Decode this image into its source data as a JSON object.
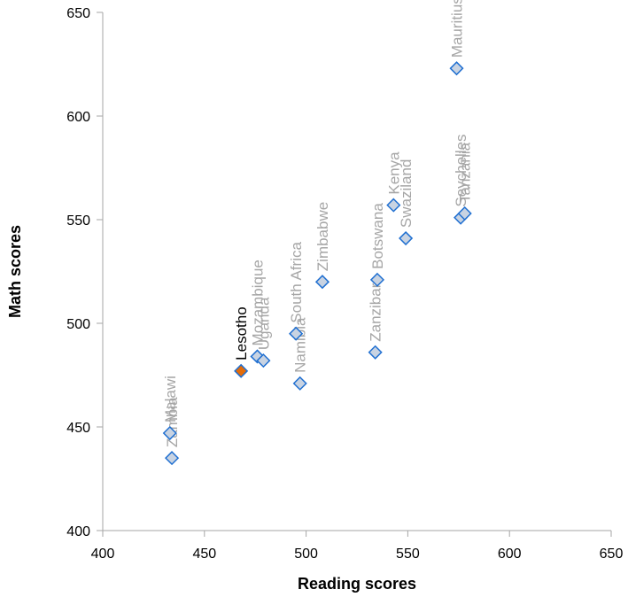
{
  "chart_data": {
    "type": "scatter",
    "title": "",
    "xlabel": "Reading scores",
    "ylabel": "Math  scores",
    "xlim": [
      400,
      650
    ],
    "ylim": [
      400,
      650
    ],
    "xticks": [
      "400",
      "450",
      "500",
      "550",
      "600",
      "650"
    ],
    "yticks": [
      "400",
      "450",
      "500",
      "550",
      "600",
      "650"
    ],
    "grid": false,
    "colors": {
      "marker_fill": "#c8d3e2",
      "marker_stroke": "#1f6fd1",
      "highlight_fill": "#e36c0a",
      "label_text": "#a6a6a6",
      "highlight_label_text": "#000000",
      "axis_line": "#a6a6a6"
    },
    "points": [
      {
        "label": "Mauritius",
        "x": 574,
        "y": 623,
        "highlight": false
      },
      {
        "label": "Seychelles",
        "x": 576,
        "y": 551,
        "highlight": false
      },
      {
        "label": "Tanzania",
        "x": 578,
        "y": 553,
        "highlight": false
      },
      {
        "label": "Kenya",
        "x": 543,
        "y": 557,
        "highlight": false
      },
      {
        "label": "Swaziland",
        "x": 549,
        "y": 541,
        "highlight": false
      },
      {
        "label": "Botswana",
        "x": 535,
        "y": 521,
        "highlight": false
      },
      {
        "label": "Zanzibar",
        "x": 534,
        "y": 486,
        "highlight": false
      },
      {
        "label": "Zimbabwe",
        "x": 508,
        "y": 520,
        "highlight": false
      },
      {
        "label": "South Africa",
        "x": 495,
        "y": 495,
        "highlight": false
      },
      {
        "label": "Namibia",
        "x": 497,
        "y": 471,
        "highlight": false
      },
      {
        "label": "Mozambique",
        "x": 476,
        "y": 484,
        "highlight": false
      },
      {
        "label": "Uganda",
        "x": 479,
        "y": 482,
        "highlight": false
      },
      {
        "label": "Lesotho",
        "x": 468,
        "y": 477,
        "highlight": true
      },
      {
        "label": "Malawi",
        "x": 433,
        "y": 447,
        "highlight": false
      },
      {
        "label": "Zambia",
        "x": 434,
        "y": 435,
        "highlight": false
      }
    ]
  }
}
